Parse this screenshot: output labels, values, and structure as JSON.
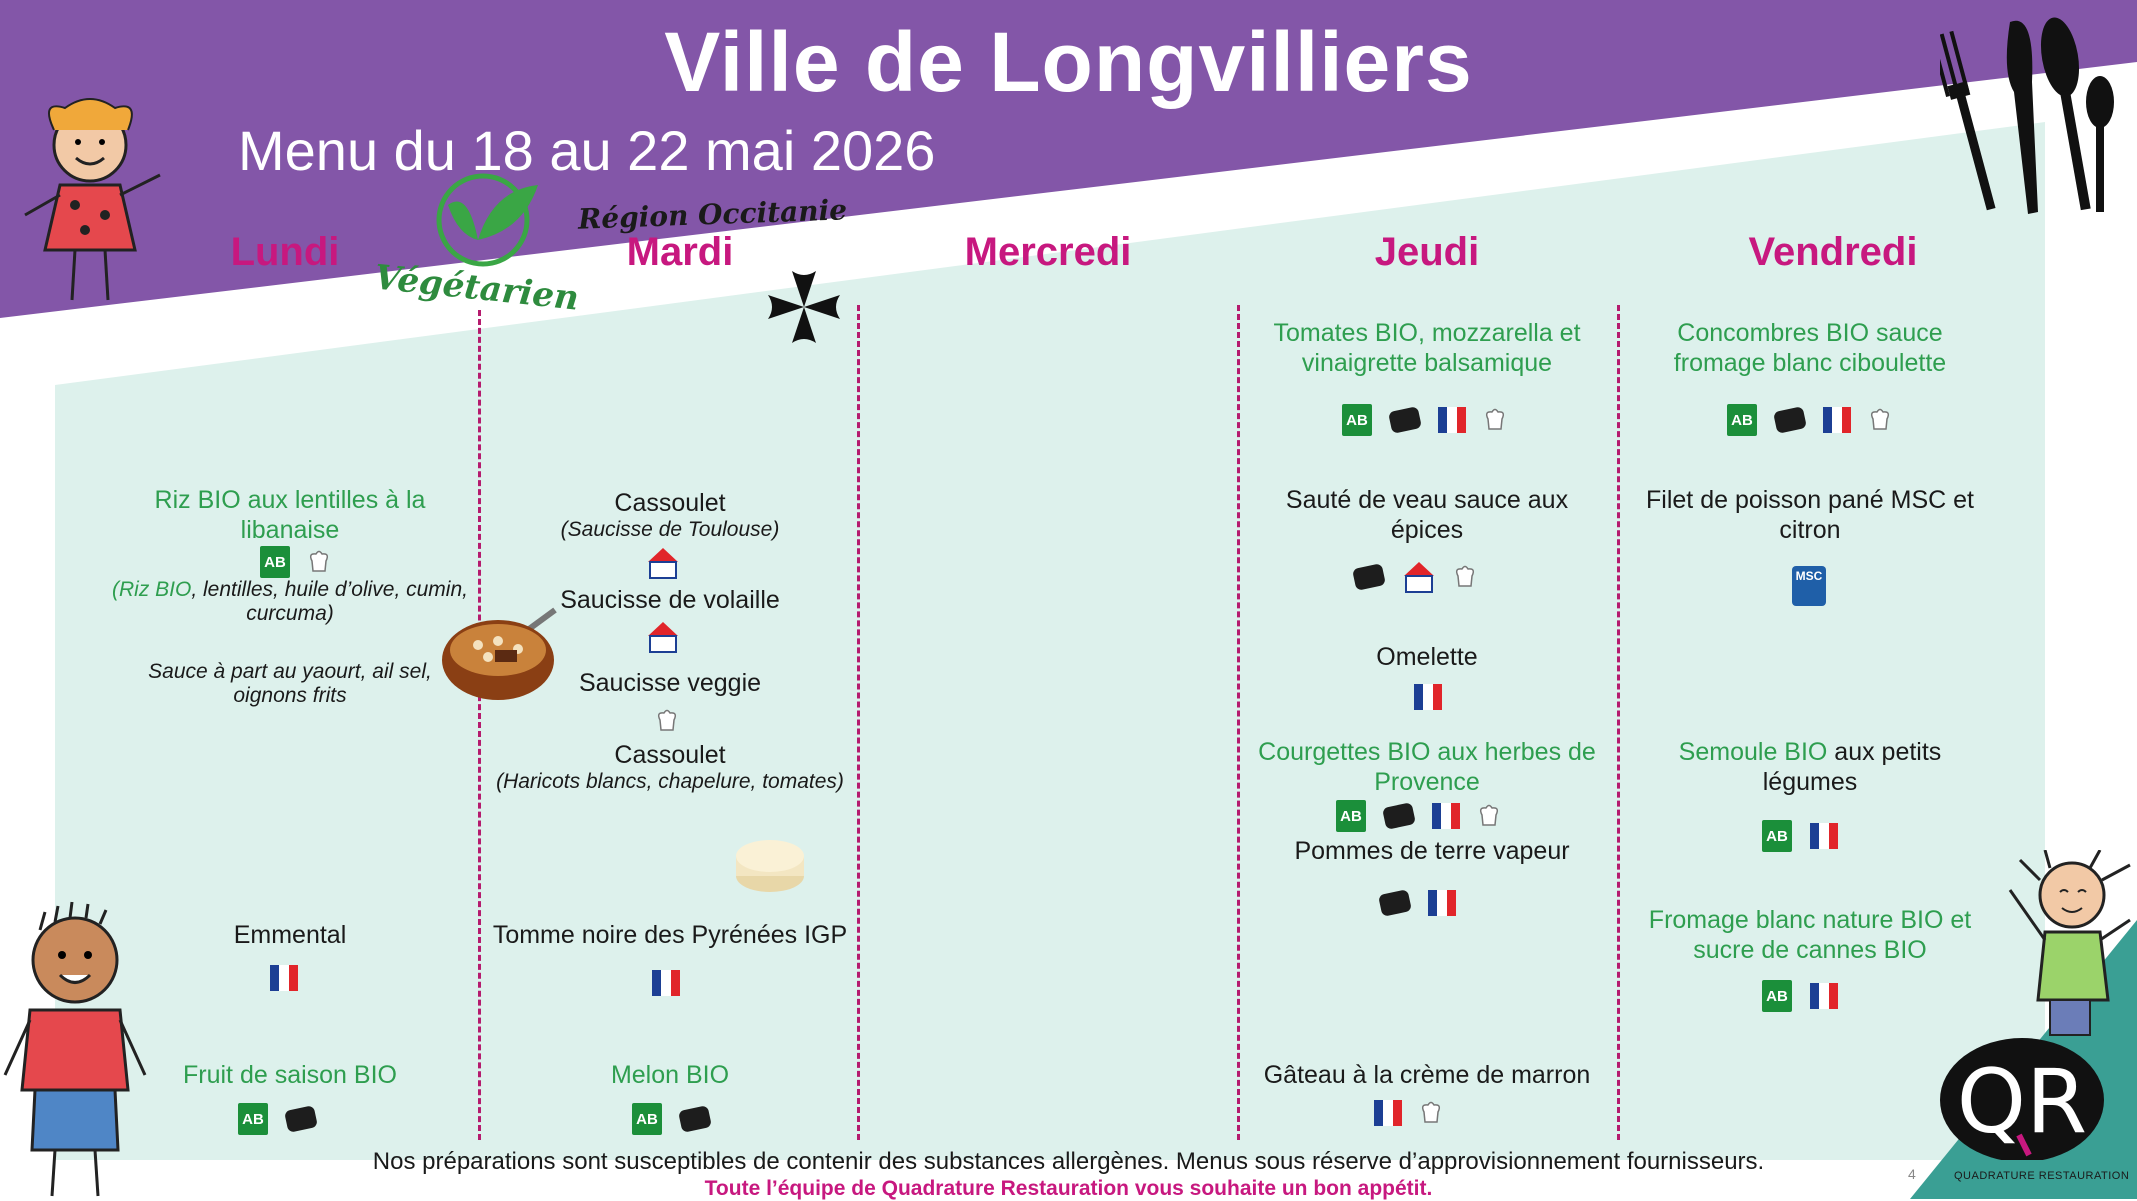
{
  "header": {
    "title": "Ville de Longvilliers",
    "subtitle": "Menu du 18 au 22 mai 2026",
    "region_label": "Région Occitanie",
    "veg_label": "Végétarien"
  },
  "days": [
    "Lundi",
    "Mardi",
    "Mercredi",
    "Jeudi",
    "Vendredi"
  ],
  "lundi": {
    "main": "Riz BIO aux lentilles à la libanaise",
    "main_detail_bio": "(Riz BIO",
    "main_detail": ", lentilles, huile d’olive, cumin, curcuma)",
    "sauce": "Sauce à part au yaourt, ail sel, oignons frits",
    "dairy": "Emmental",
    "dessert": "Fruit de saison BIO"
  },
  "mardi": {
    "main1": "Cassoulet",
    "main1_detail": "(Saucisse de Toulouse)",
    "main2": "Saucisse de volaille",
    "main3": "Saucisse veggie",
    "main4": "Cassoulet",
    "main4_detail": "(Haricots blancs, chapelure, tomates)",
    "dairy": "Tomme noire des Pyrénées IGP",
    "dessert": "Melon BIO"
  },
  "jeudi": {
    "starter": "Tomates BIO, mozzarella et vinaigrette balsamique",
    "main": "Sauté de veau sauce aux épices",
    "main2": "Omelette",
    "side1": "Courgettes BIO aux herbes de Provence",
    "side2": "Pommes de terre vapeur",
    "dessert": "Gâteau à la crème de marron"
  },
  "vendredi": {
    "starter": "Concombres BIO sauce fromage blanc ciboulette",
    "main": "Filet de poisson pané MSC et citron",
    "side_bio": "Semoule BIO",
    "side_rest": " aux petits légumes",
    "dairy": "Fromage blanc nature BIO et sucre de cannes BIO"
  },
  "labels": {
    "ab": "AB",
    "msc": "MSC"
  },
  "footer": {
    "line1": "Nos préparations sont susceptibles de contenir des substances allergènes. Menus sous réserve d’approvisionnement fournisseurs.",
    "line2": "Toute l’équipe de Quadrature Restauration vous souhaite un bon appétit.",
    "page": "4",
    "brand": "QUADRATURE RESTAURATION",
    "brand_logo": "QR"
  },
  "colors": {
    "purple": "#8356a8",
    "mint": "#ddf1ec",
    "magenta": "#c7187f",
    "green": "#2e9e4f"
  },
  "icons": [
    "bio-ab-icon",
    "fait-maison-icon",
    "france-origin-icon",
    "chef-hat-icon",
    "viandes-de-france-icon",
    "msc-icon",
    "occitan-cross-icon",
    "cutlery-icon",
    "vegetarian-leaf-icon"
  ]
}
